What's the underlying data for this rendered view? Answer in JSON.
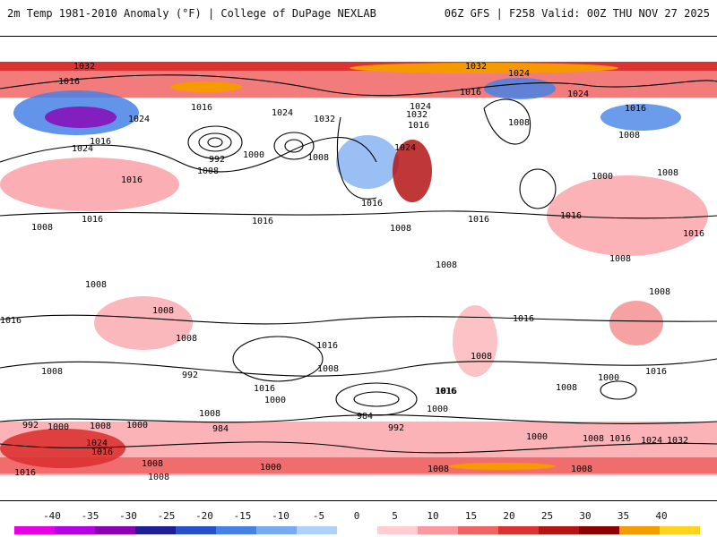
{
  "header": {
    "left_title": "2m Temp 1981-2010 Anomaly (°F) | College of DuPage NEXLAB",
    "right_title": "06Z GFS | F258 Valid: 00Z THU NOV 27 2025"
  },
  "map": {
    "isobar_labels": [
      {
        "text": "1032"
      },
      {
        "text": "1016"
      },
      {
        "text": "1024"
      },
      {
        "text": "1016"
      },
      {
        "text": "1024"
      },
      {
        "text": "1016"
      },
      {
        "text": "1024"
      },
      {
        "text": "1032"
      },
      {
        "text": "992"
      },
      {
        "text": "1000"
      },
      {
        "text": "1008"
      },
      {
        "text": "1008"
      },
      {
        "text": "1016"
      },
      {
        "text": "1016"
      },
      {
        "text": "1016"
      },
      {
        "text": "1008"
      },
      {
        "text": "1032"
      },
      {
        "text": "1024"
      },
      {
        "text": "1016"
      },
      {
        "text": "1024"
      },
      {
        "text": "1032"
      },
      {
        "text": "1016"
      },
      {
        "text": "1024"
      },
      {
        "text": "1024"
      },
      {
        "text": "1008"
      },
      {
        "text": "1016"
      },
      {
        "text": "1008"
      },
      {
        "text": "1008"
      },
      {
        "text": "1000"
      },
      {
        "text": "1016"
      },
      {
        "text": "1016"
      },
      {
        "text": "1016"
      },
      {
        "text": "1016"
      },
      {
        "text": "1008"
      },
      {
        "text": "1008"
      },
      {
        "text": "1008"
      },
      {
        "text": "1008"
      },
      {
        "text": "1008"
      },
      {
        "text": "1016"
      },
      {
        "text": "1008"
      },
      {
        "text": "1008"
      },
      {
        "text": "1016"
      },
      {
        "text": "1016"
      },
      {
        "text": "1008"
      },
      {
        "text": "1016"
      },
      {
        "text": "1008"
      },
      {
        "text": "992"
      },
      {
        "text": "1016"
      },
      {
        "text": "1008"
      },
      {
        "text": "1000"
      },
      {
        "text": "1016"
      },
      {
        "text": "984"
      },
      {
        "text": "1000"
      },
      {
        "text": "1008"
      },
      {
        "text": "1000"
      },
      {
        "text": "1016"
      },
      {
        "text": "992"
      },
      {
        "text": "1000"
      },
      {
        "text": "1008"
      },
      {
        "text": "1008"
      },
      {
        "text": "1000"
      },
      {
        "text": "1008"
      },
      {
        "text": "984"
      },
      {
        "text": "992"
      },
      {
        "text": "1000"
      },
      {
        "text": "1008"
      },
      {
        "text": "1016"
      },
      {
        "text": "1024"
      },
      {
        "text": "1032"
      },
      {
        "text": "1016"
      },
      {
        "text": "1024"
      },
      {
        "text": "1016"
      },
      {
        "text": "1000"
      },
      {
        "text": "1008"
      },
      {
        "text": "1008"
      },
      {
        "text": "1008"
      }
    ]
  },
  "colorbar": {
    "labels": [
      "-40",
      "-35",
      "-30",
      "-25",
      "-20",
      "-15",
      "-10",
      "-5",
      "0",
      "5",
      "10",
      "15",
      "20",
      "25",
      "30",
      "35",
      "40"
    ],
    "colors": [
      "#e600e6",
      "#b400e6",
      "#8c00b4",
      "#1e1e96",
      "#2850c8",
      "#4682e6",
      "#78aaf0",
      "#afd2fa",
      "#ffffff",
      "#ffcdd2",
      "#fa9aa0",
      "#f06464",
      "#dc3232",
      "#b41414",
      "#8c0000",
      "#f59b00",
      "#ffd21e"
    ]
  }
}
